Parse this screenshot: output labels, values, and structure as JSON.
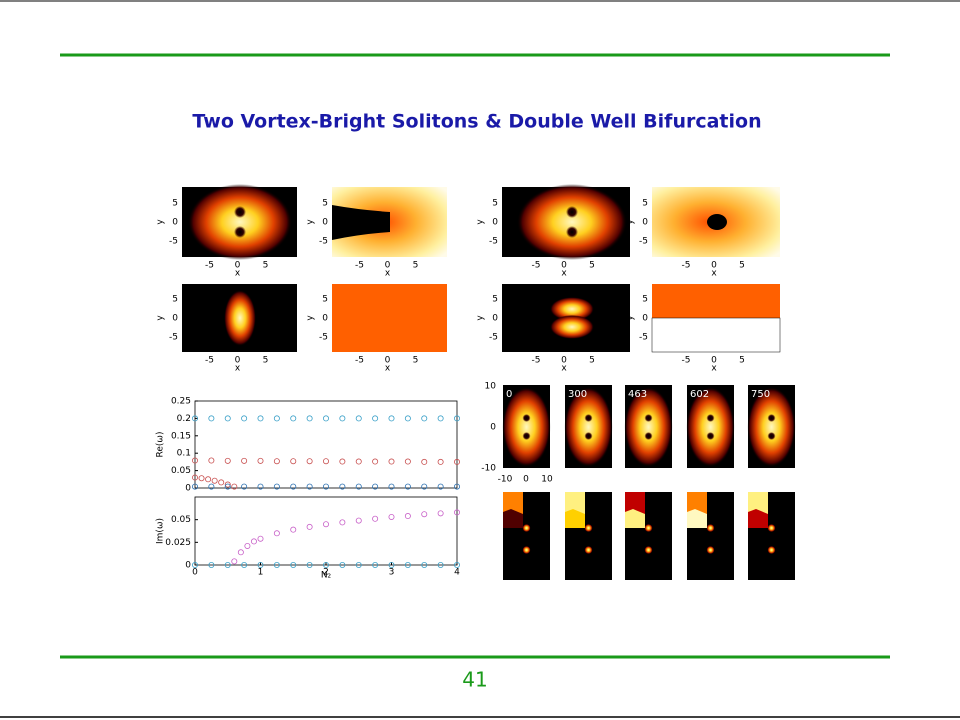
{
  "title": "Two Vortex-Bright Solitons & Double Well Bifurcation",
  "page_number": "41",
  "panel_axes": {
    "xticks": [
      -5,
      0,
      5
    ],
    "yticks": [
      5,
      0,
      -5
    ],
    "xlabel": "x",
    "ylabel": "y"
  },
  "snapshots": {
    "times": [
      "0",
      "300",
      "463",
      "602",
      "750"
    ],
    "yticks": [
      10,
      0,
      -10
    ],
    "xticks": [
      -10,
      0,
      10
    ]
  },
  "chart_data": [
    {
      "type": "scatter",
      "ylabel": "Re(ω)",
      "xlim": [
        0,
        4
      ],
      "ylim": [
        0,
        0.25
      ],
      "yticks": [
        0,
        0.05,
        0.1,
        0.15,
        0.2,
        0.25
      ],
      "series": [
        {
          "color": "#3aa0c8",
          "x": [
            0,
            0.25,
            0.5,
            0.75,
            1,
            1.25,
            1.5,
            1.75,
            2,
            2.25,
            2.5,
            2.75,
            3,
            3.25,
            3.5,
            3.75,
            4
          ],
          "values": [
            0.2,
            0.2,
            0.2,
            0.2,
            0.2,
            0.2,
            0.2,
            0.2,
            0.2,
            0.2,
            0.2,
            0.2,
            0.2,
            0.2,
            0.2,
            0.2,
            0.2
          ]
        },
        {
          "color": "#c85050",
          "x": [
            0,
            0.25,
            0.5,
            0.75,
            1,
            1.25,
            1.5,
            1.75,
            2,
            2.25,
            2.5,
            2.75,
            3,
            3.25,
            3.5,
            3.75,
            4
          ],
          "values": [
            0.079,
            0.079,
            0.078,
            0.078,
            0.078,
            0.077,
            0.077,
            0.077,
            0.077,
            0.076,
            0.076,
            0.076,
            0.076,
            0.076,
            0.075,
            0.075,
            0.075
          ]
        },
        {
          "color": "#c85050",
          "x": [
            0,
            0.1,
            0.2,
            0.3,
            0.4,
            0.5,
            0.6
          ],
          "values": [
            0.03,
            0.028,
            0.025,
            0.021,
            0.016,
            0.01,
            0.004
          ]
        },
        {
          "color": "#2a6fb0",
          "x": [
            0,
            0.25,
            0.5,
            0.75,
            1,
            1.25,
            1.5,
            1.75,
            2,
            2.25,
            2.5,
            2.75,
            3,
            3.25,
            3.5,
            3.75,
            4
          ],
          "values": [
            0.004,
            0.004,
            0.004,
            0.004,
            0.004,
            0.004,
            0.004,
            0.004,
            0.004,
            0.004,
            0.004,
            0.004,
            0.004,
            0.004,
            0.004,
            0.004,
            0.004
          ]
        }
      ]
    },
    {
      "type": "scatter",
      "xlabel": "N₂",
      "ylabel": "Im(ω)",
      "xlim": [
        0,
        4
      ],
      "ylim": [
        0,
        0.075
      ],
      "xticks": [
        0,
        1,
        2,
        3,
        4
      ],
      "yticks": [
        0,
        0.025,
        0.05
      ],
      "series": [
        {
          "color": "#c860c8",
          "x": [
            0.6,
            0.7,
            0.8,
            0.9,
            1,
            1.25,
            1.5,
            1.75,
            2,
            2.25,
            2.5,
            2.75,
            3,
            3.25,
            3.5,
            3.75,
            4
          ],
          "values": [
            0.004,
            0.014,
            0.021,
            0.026,
            0.029,
            0.035,
            0.039,
            0.042,
            0.045,
            0.047,
            0.049,
            0.051,
            0.053,
            0.054,
            0.056,
            0.057,
            0.058
          ]
        },
        {
          "color": "#3aa0c8",
          "x": [
            0,
            0.25,
            0.5,
            0.75,
            1,
            1.25,
            1.5,
            1.75,
            2,
            2.25,
            2.5,
            2.75,
            3,
            3.25,
            3.5,
            3.75,
            4
          ],
          "values": [
            0,
            0,
            0,
            0,
            0,
            0,
            0,
            0,
            0,
            0,
            0,
            0,
            0,
            0,
            0,
            0,
            0
          ]
        }
      ]
    }
  ]
}
